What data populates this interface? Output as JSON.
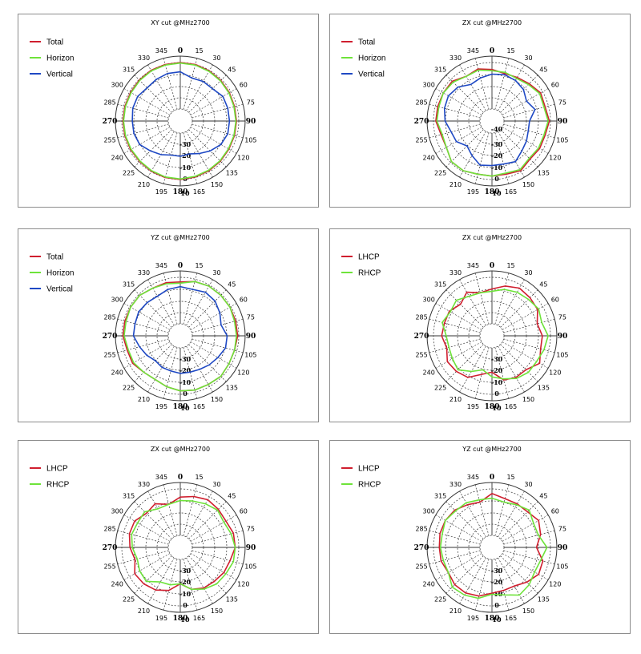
{
  "colors": {
    "red": "#d01f2f",
    "green": "#6ee33a",
    "blue": "#1f49c4",
    "grid": "#333333",
    "border": "#8c8c8c"
  },
  "angle_labels": [
    "0",
    "15",
    "30",
    "45",
    "60",
    "75",
    "90",
    "105",
    "120",
    "135",
    "150",
    "165",
    "180",
    "195",
    "210",
    "225",
    "240",
    "255",
    "270",
    "285",
    "300",
    "315",
    "330",
    "345"
  ],
  "chart_data": [
    {
      "type": "polar",
      "title": "XY cut @MHz2700",
      "radial_ticks": [
        "0",
        "10",
        "-10",
        "-20",
        "-30"
      ],
      "legend_placement": "top-left",
      "angles": [
        0,
        15,
        30,
        45,
        60,
        75,
        90,
        105,
        120,
        135,
        150,
        165,
        180,
        195,
        210,
        225,
        240,
        255,
        270,
        285,
        300,
        315,
        330,
        345
      ],
      "series": [
        {
          "name": "Total",
          "color_key": "red",
          "values": [
            0,
            0,
            -0.5,
            -1,
            -1.5,
            -2,
            -2,
            -2,
            -2,
            -1.5,
            -1,
            -0.5,
            0,
            0,
            -0.5,
            -1,
            -1,
            -1,
            -1,
            -1,
            -1,
            -0.5,
            0,
            0
          ]
        },
        {
          "name": "Horizon",
          "color_key": "green",
          "values": [
            -0.5,
            -0.5,
            -1,
            -1.5,
            -2,
            -2.5,
            -2.5,
            -2.5,
            -2.5,
            -2,
            -1.5,
            -1,
            -0.5,
            -0.5,
            -1,
            -1.5,
            -1.5,
            -1.5,
            -1.5,
            -1.5,
            -1.5,
            -1,
            -0.5,
            -0.5
          ]
        },
        {
          "name": "Vertical",
          "color_key": "blue",
          "values": [
            -8,
            -12,
            -11,
            -11,
            -8,
            -8,
            -8,
            -8,
            -10,
            -14,
            -18,
            -21,
            -20,
            -20,
            -17,
            -14,
            -10,
            -9,
            -9,
            -8,
            -8,
            -10,
            -9,
            -8
          ]
        }
      ]
    },
    {
      "type": "polar",
      "title": "ZX cut @MHz2700",
      "radial_ticks": [
        "0",
        "10",
        "-10",
        "-20",
        "-30",
        "-40"
      ],
      "legend_placement": "top-left",
      "angles": [
        0,
        15,
        30,
        45,
        60,
        75,
        90,
        105,
        120,
        135,
        150,
        165,
        180,
        195,
        210,
        225,
        240,
        255,
        270,
        285,
        300,
        315,
        330,
        345
      ],
      "series": [
        {
          "name": "Total",
          "color_key": "red",
          "values": [
            -6,
            -8,
            -7,
            -5,
            -2,
            -3,
            -1,
            -3,
            -3,
            -4,
            -1,
            -3,
            -3,
            -3,
            -1,
            -1,
            -5,
            -5,
            -2,
            -2,
            -2,
            -2,
            -6,
            -4
          ]
        },
        {
          "name": "Horizon",
          "color_key": "green",
          "values": [
            -7,
            -7,
            -8,
            -6,
            -3,
            -4,
            -2,
            -4,
            -4,
            -5,
            -2,
            -4,
            -3,
            -3,
            -1,
            -1,
            -5,
            -6,
            -3,
            -3,
            -2,
            -3,
            -6,
            -5
          ]
        },
        {
          "name": "Vertical",
          "color_key": "blue",
          "values": [
            -10,
            -9,
            -10,
            -12,
            -16,
            -12,
            -18,
            -18,
            -16,
            -14,
            -10,
            -12,
            -12,
            -11,
            -16,
            -20,
            -15,
            -14,
            -10,
            -8,
            -7,
            -9,
            -14,
            -12
          ]
        }
      ]
    },
    {
      "type": "polar",
      "title": "YZ cut @MHz2700",
      "radial_ticks": [
        "0",
        "10",
        "-10",
        "-20",
        "-30"
      ],
      "legend_placement": "top-left",
      "angles": [
        0,
        15,
        30,
        45,
        60,
        75,
        90,
        105,
        120,
        135,
        150,
        165,
        180,
        195,
        210,
        225,
        240,
        255,
        270,
        285,
        300,
        315,
        330,
        345
      ],
      "series": [
        {
          "name": "Total",
          "color_key": "red",
          "values": [
            -4,
            -2,
            -1,
            -1,
            -1,
            -1,
            -1,
            -2,
            -2,
            -1,
            -2,
            -2,
            -3,
            -5,
            -7,
            -6,
            -3,
            -3,
            -1,
            -1,
            -1,
            -1,
            -3,
            -3
          ]
        },
        {
          "name": "Horizon",
          "color_key": "green",
          "values": [
            -5,
            -2,
            -1,
            -1,
            -1,
            -2,
            -2,
            -2,
            -2,
            -1,
            -2,
            -2,
            -3,
            -5,
            -7,
            -6,
            -4,
            -4,
            -2,
            -2,
            -1,
            -1,
            -3,
            -4
          ]
        },
        {
          "name": "Vertical",
          "color_key": "blue",
          "values": [
            -8,
            -9,
            -7,
            -8,
            -11,
            -14,
            -10,
            -10,
            -13,
            -15,
            -17,
            -18,
            -18,
            -19,
            -19,
            -20,
            -17,
            -14,
            -10,
            -10,
            -9,
            -10,
            -11,
            -9
          ]
        }
      ]
    },
    {
      "type": "polar",
      "title": "ZX cut @MHz2700",
      "radial_ticks": [
        "0",
        "10",
        "-10",
        "-20",
        "-30"
      ],
      "legend_placement": "top-left",
      "angles": [
        0,
        15,
        30,
        45,
        60,
        75,
        90,
        105,
        120,
        135,
        150,
        165,
        180,
        195,
        210,
        225,
        240,
        255,
        270,
        285,
        300,
        315,
        330,
        345
      ],
      "series": [
        {
          "name": "LHCP",
          "color_key": "red",
          "values": [
            -10,
            -6,
            -3,
            -4,
            -5,
            -10,
            -7,
            -7,
            -3,
            -9,
            -9,
            -11,
            -19,
            -16,
            -9,
            -7,
            -6,
            -10,
            -7,
            -8,
            -8,
            -12,
            -7,
            -12
          ]
        },
        {
          "name": "RHCP",
          "color_key": "green",
          "values": [
            -12,
            -9,
            -7,
            -6,
            -4,
            -6,
            -2,
            -4,
            -6,
            -6,
            -8,
            -12,
            -15,
            -20,
            -15,
            -9,
            -11,
            -12,
            -11,
            -6,
            -9,
            -7,
            -11,
            -12
          ]
        }
      ]
    },
    {
      "type": "polar",
      "title": "ZX cut @MHz2700",
      "radial_ticks": [
        "0",
        "10",
        "-10",
        "-20",
        "-30"
      ],
      "legend_placement": "top-left",
      "angles": [
        0,
        15,
        30,
        45,
        60,
        75,
        90,
        105,
        120,
        135,
        150,
        165,
        180,
        195,
        210,
        225,
        240,
        255,
        270,
        285,
        300,
        315,
        330,
        345
      ],
      "series": [
        {
          "name": "LHCP",
          "color_key": "red",
          "values": [
            -7,
            -5,
            -3,
            -4,
            -5,
            -3,
            -3,
            -6,
            -7,
            -9,
            -10,
            -13,
            -19,
            -12,
            -8,
            -6,
            -5,
            -10,
            -7,
            -5,
            -5,
            -9,
            -7,
            -12
          ]
        },
        {
          "name": "RHCP",
          "color_key": "green",
          "values": [
            -10,
            -9,
            -7,
            -5,
            -7,
            -5,
            -3,
            -3,
            -5,
            -6,
            -9,
            -13,
            -19,
            -17,
            -16,
            -9,
            -10,
            -12,
            -9,
            -7,
            -8,
            -7,
            -12,
            -12
          ]
        }
      ]
    },
    {
      "type": "polar",
      "title": "YZ cut @MHz2700",
      "radial_ticks": [
        "0",
        "10",
        "-10",
        "-20",
        "-30"
      ],
      "legend_placement": "top-left",
      "angles": [
        0,
        15,
        30,
        45,
        60,
        75,
        90,
        105,
        120,
        135,
        150,
        165,
        180,
        195,
        210,
        225,
        240,
        255,
        270,
        285,
        300,
        315,
        330,
        345
      ],
      "series": [
        {
          "name": "LHCP",
          "color_key": "red",
          "values": [
            -4,
            -7,
            -7,
            -7,
            -4,
            -7,
            -12,
            -5,
            -4,
            -8,
            -12,
            -12,
            -11,
            -7,
            -5,
            -5,
            -7,
            -5,
            -5,
            -4,
            -4,
            -5,
            -8,
            -10
          ]
        },
        {
          "name": "RHCP",
          "color_key": "green",
          "values": [
            -8,
            -10,
            -8,
            -5,
            -9,
            -9,
            -3,
            -7,
            -8,
            -5,
            -3,
            -8,
            -10,
            -5,
            -3,
            -2,
            -7,
            -7,
            -6,
            -6,
            -4,
            -6,
            -6,
            -8
          ]
        }
      ]
    }
  ]
}
